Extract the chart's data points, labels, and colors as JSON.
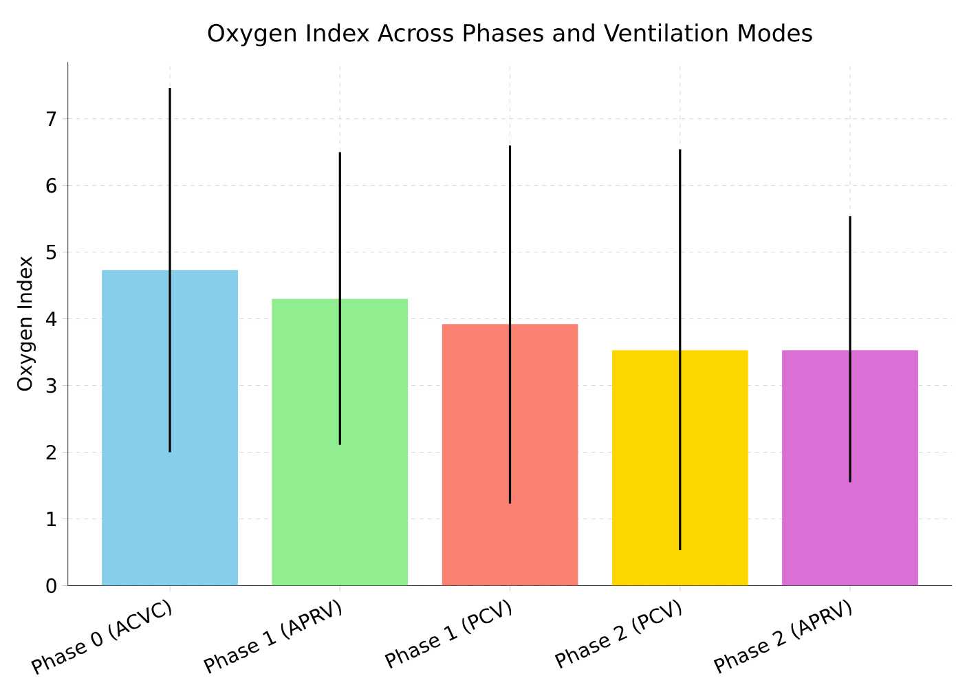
{
  "chart_data": {
    "type": "bar",
    "title": "Oxygen Index Across Phases and Ventilation Modes",
    "ylabel": "Oxygen Index",
    "categories": [
      "Phase 0 (ACVC)",
      "Phase 1 (APRV)",
      "Phase 1 (PCV)",
      "Phase 2 (PCV)",
      "Phase 2 (APRV)"
    ],
    "values": [
      4.73,
      4.3,
      3.92,
      3.53,
      3.53
    ],
    "errors": [
      [
        2.0,
        7.46
      ],
      [
        2.11,
        6.5
      ],
      [
        1.23,
        6.6
      ],
      [
        0.53,
        6.54
      ],
      [
        1.55,
        5.54
      ]
    ],
    "colors": [
      "#87ceeb",
      "#90ee90",
      "#fa8072",
      "#ffd700",
      "#da70d6"
    ],
    "ylim": [
      0,
      7.85
    ],
    "yticks": [
      0,
      1,
      2,
      3,
      4,
      5,
      6,
      7
    ],
    "grid": true
  }
}
